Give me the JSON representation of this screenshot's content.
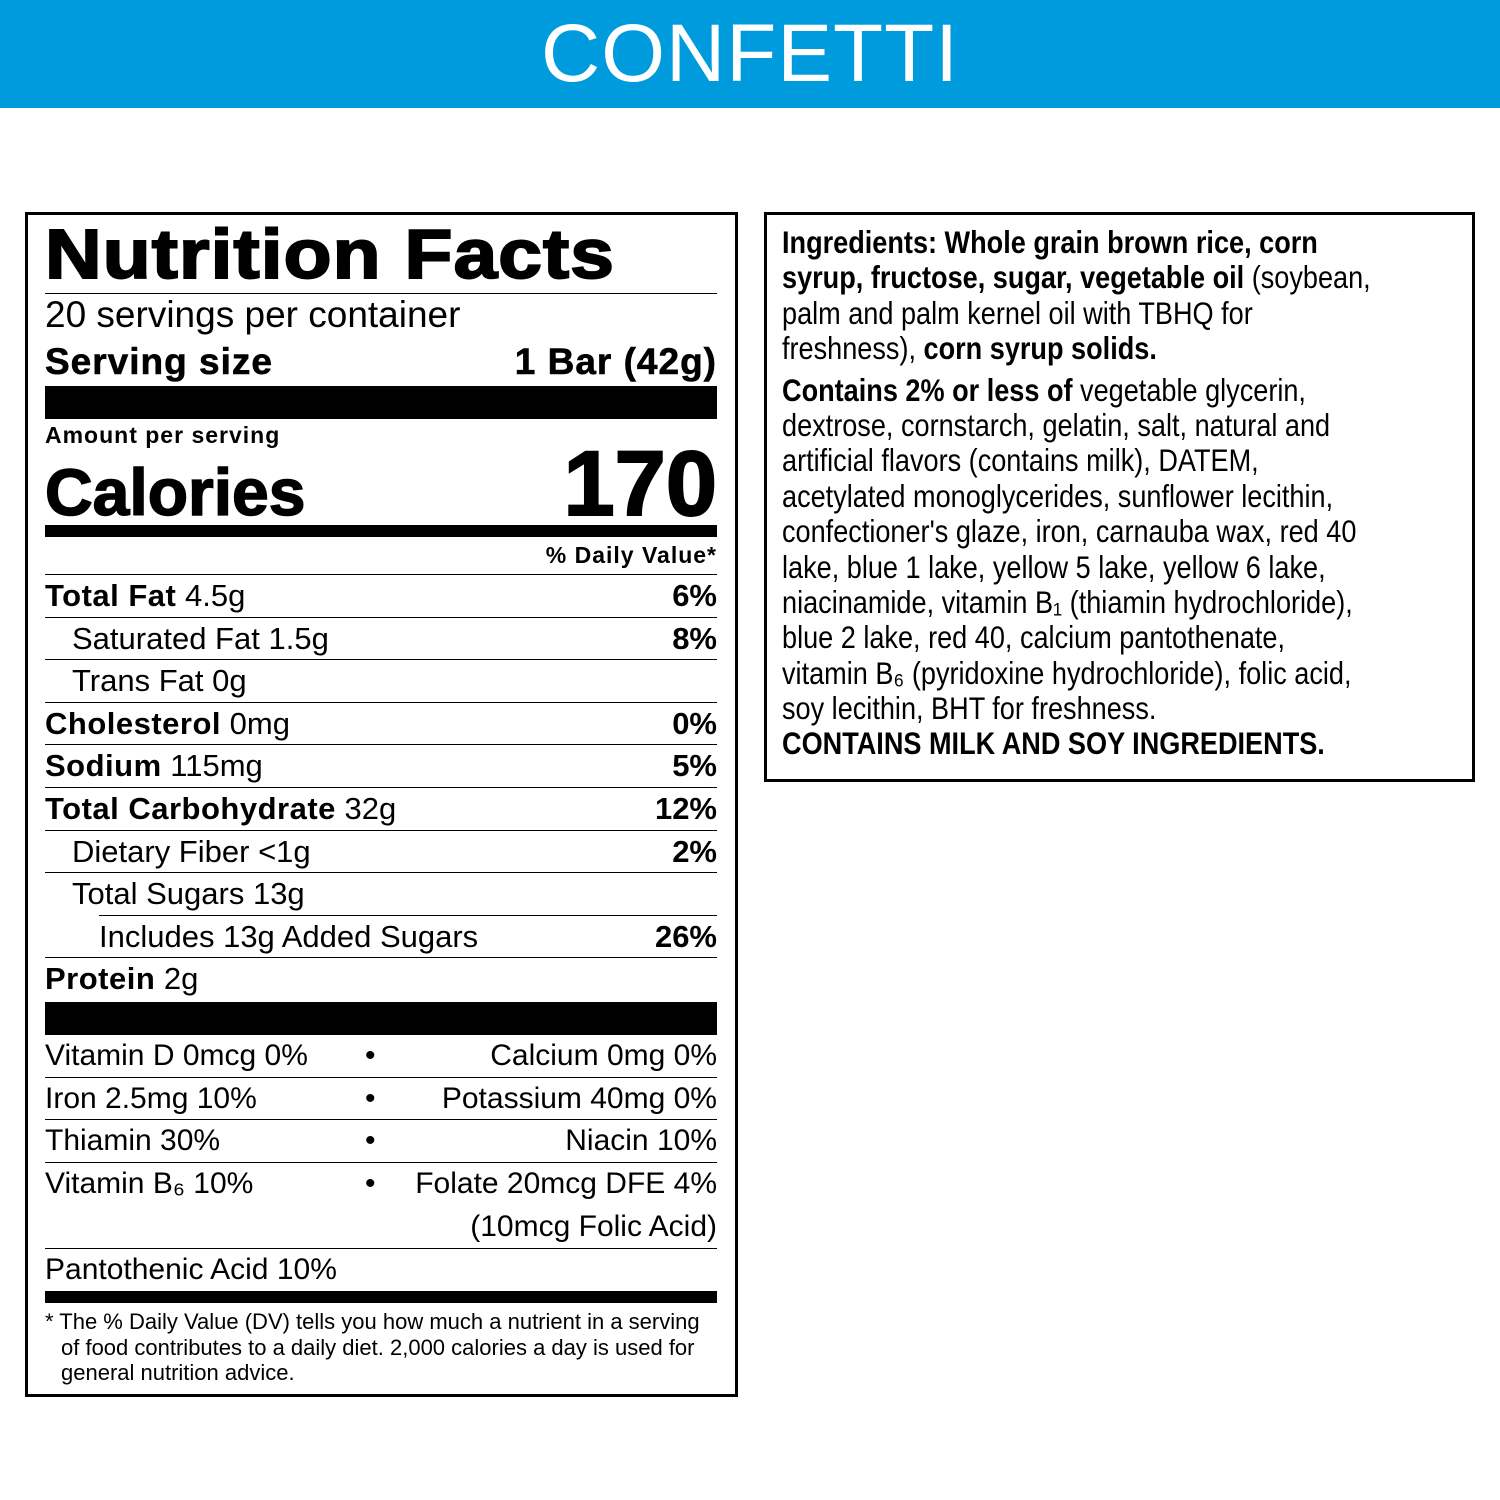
{
  "banner": {
    "title": "CONFETTI",
    "color": "#009bdc"
  },
  "nutrition": {
    "title": "Nutrition Facts",
    "servings": "20 servings per container",
    "serving_size_label": "Serving size",
    "serving_size_value": "1 Bar (42g)",
    "amount_per_serving": "Amount per serving",
    "calories_label": "Calories",
    "calories_value": "170",
    "dv_header": "% Daily Value*",
    "rows": [
      {
        "name": "Total Fat",
        "amount": "4.5g",
        "dv": "6%",
        "bold": true,
        "indent": 0
      },
      {
        "name": "Saturated Fat",
        "amount": "1.5g",
        "dv": "8%",
        "bold": false,
        "indent": 1
      },
      {
        "name": "Trans Fat",
        "amount": "0g",
        "dv": "",
        "bold": false,
        "indent": 1
      },
      {
        "name": "Cholesterol",
        "amount": "0mg",
        "dv": "0%",
        "bold": true,
        "indent": 0
      },
      {
        "name": "Sodium",
        "amount": "115mg",
        "dv": "5%",
        "bold": true,
        "indent": 0
      },
      {
        "name": "Total Carbohydrate",
        "amount": "32g",
        "dv": "12%",
        "bold": true,
        "indent": 0
      },
      {
        "name": "Dietary Fiber",
        "amount": "<1g",
        "dv": "2%",
        "bold": false,
        "indent": 1
      },
      {
        "name": "Total Sugars",
        "amount": "13g",
        "dv": "",
        "bold": false,
        "indent": 1
      },
      {
        "name": "Includes 13g Added Sugars",
        "amount": "",
        "dv": "26%",
        "bold": false,
        "indent": 2
      },
      {
        "name": "Protein",
        "amount": "2g",
        "dv": "",
        "bold": true,
        "indent": 0
      }
    ],
    "micros": [
      {
        "left": "Vitamin D 0mcg  0%",
        "right": "Calcium 0mg 0%"
      },
      {
        "left": "Iron 2.5mg 10%",
        "right": "Potassium 40mg 0%"
      },
      {
        "left": "Thiamin 30%",
        "right": "Niacin 10%"
      },
      {
        "left": "Vitamin B₆ 10%",
        "right": "Folate 20mcg DFE 4%",
        "right2": "(10mcg Folic Acid)"
      }
    ],
    "micro_single": "Pantothenic Acid 10%",
    "footnote": "* The % Daily Value (DV) tells you how much a nutrient in a serving of food contributes to a daily diet. 2,000 calories a day is used for general nutrition advice."
  },
  "ingredients": {
    "lines": [
      [
        {
          "t": "Ingredients: Whole grain brown rice, corn",
          "b": true
        }
      ],
      [
        {
          "t": "syrup, fructose, sugar, vegetable oil",
          "b": true
        },
        {
          "t": " (soybean,",
          "b": false
        }
      ],
      [
        {
          "t": "palm and palm kernel oil with TBHQ for",
          "b": false
        }
      ],
      [
        {
          "t": "freshness), ",
          "b": false
        },
        {
          "t": "corn syrup solids.",
          "b": true
        }
      ],
      "gap",
      [
        {
          "t": "Contains 2% or less of",
          "b": true
        },
        {
          "t": " vegetable glycerin,",
          "b": false
        }
      ],
      [
        {
          "t": "dextrose, cornstarch, gelatin, salt, natural and",
          "b": false
        }
      ],
      [
        {
          "t": "artificial flavors (contains milk), DATEM,",
          "b": false
        }
      ],
      [
        {
          "t": "acetylated monoglycerides, sunflower lecithin,",
          "b": false
        }
      ],
      [
        {
          "t": "confectioner's glaze, iron, carnauba wax, red 40",
          "b": false
        }
      ],
      [
        {
          "t": "lake, blue 1 lake, yellow 5 lake, yellow 6 lake,",
          "b": false
        }
      ],
      [
        {
          "t": "niacinamide, vitamin B₁ (thiamin hydrochloride),",
          "b": false
        }
      ],
      [
        {
          "t": "blue 2 lake, red 40, calcium pantothenate,",
          "b": false
        }
      ],
      [
        {
          "t": "vitamin B₆ (pyridoxine hydrochloride), folic acid,",
          "b": false
        }
      ],
      [
        {
          "t": "soy lecithin, BHT for freshness.",
          "b": false
        }
      ],
      [
        {
          "t": "CONTAINS MILK AND SOY INGREDIENTS.",
          "b": true
        }
      ]
    ]
  }
}
